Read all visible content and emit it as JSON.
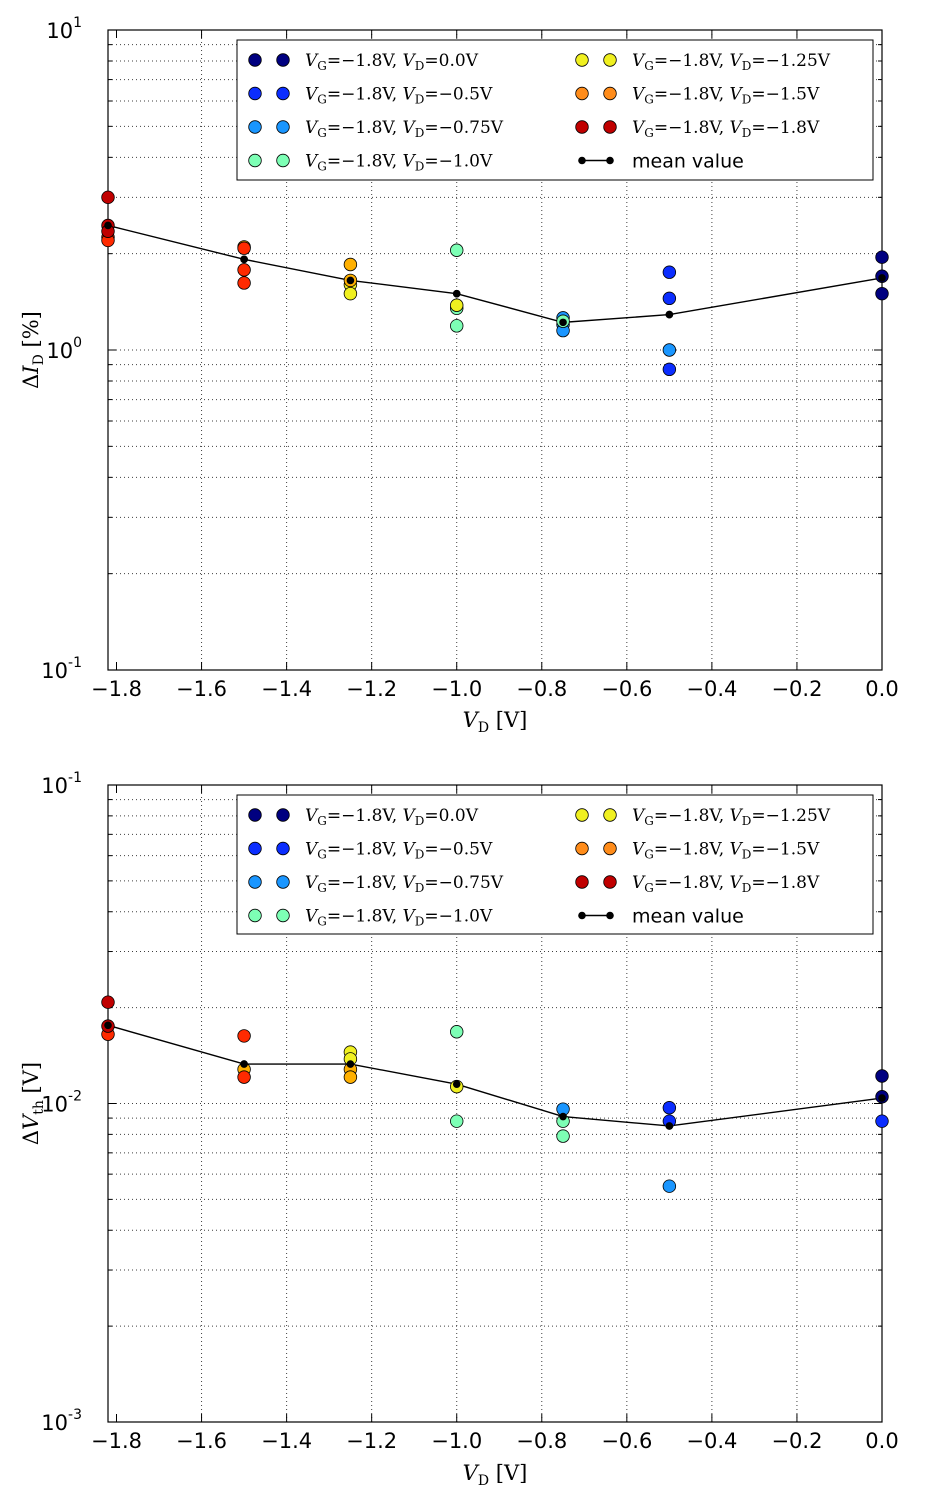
{
  "chart_data": [
    {
      "type": "scatter",
      "title": "",
      "xlabel": "V_D [V]",
      "ylabel": "ΔI_D [%]",
      "xlim": [
        -1.82,
        0.0
      ],
      "ylim": [
        0.1,
        10
      ],
      "yscale": "log",
      "grid": true,
      "legend_position": "top-right",
      "x_ticks": [
        "−1.8",
        "−1.6",
        "−1.4",
        "−1.2",
        "−1.0",
        "−0.8",
        "−0.6",
        "−0.4",
        "−0.2",
        "0.0"
      ],
      "y_ticks": [
        {
          "base": "10",
          "exp": "-1"
        },
        {
          "base": "10",
          "exp": "0"
        },
        {
          "base": "10",
          "exp": "1"
        }
      ],
      "series": [
        {
          "name": "V_G=−1.8V, V_D=0.0V",
          "color": "#000080",
          "x": [
            0,
            0,
            0
          ],
          "y": [
            1.95,
            1.7,
            1.5
          ]
        },
        {
          "name": "V_G=−1.8V, V_D=−0.5V",
          "color": "#0b2dff",
          "x": [
            -0.5,
            -0.5,
            -0.5
          ],
          "y": [
            1.75,
            1.45,
            0.87
          ]
        },
        {
          "name": "V_G=−1.8V, V_D=−0.75V",
          "color": "#1a96ff",
          "x": [
            -0.5,
            -0.75,
            -0.75,
            -0.75
          ],
          "y": [
            1.0,
            1.26,
            1.2,
            1.15
          ]
        },
        {
          "name": "V_G=−1.8V, V_D=−1.0V",
          "color": "#7dffb5",
          "x": [
            -1.0,
            -1.0,
            -1.0,
            -0.75
          ],
          "y": [
            2.05,
            1.35,
            1.19,
            1.23
          ]
        },
        {
          "name": "V_G=−1.8V, V_D=−1.25V",
          "color": "#f0f020",
          "x": [
            -1.0,
            -1.25,
            -1.25
          ],
          "y": [
            1.38,
            1.6,
            1.5
          ]
        },
        {
          "name": "V_G=−1.8V, V_D=−1.5V",
          "color": "#ffb000",
          "x": [
            -1.25,
            -1.25,
            -1.5
          ],
          "y": [
            1.85,
            1.65,
            2.1
          ]
        },
        {
          "name": "V_G=−1.8V, V_D=−1.8V",
          "color": "#ff2a00",
          "x": [
            -1.5,
            -1.5,
            -1.5,
            -1.82,
            -1.82
          ],
          "y": [
            2.08,
            1.78,
            1.62,
            2.25,
            2.2
          ]
        },
        {
          "name": "",
          "color": "#c00000",
          "x": [
            -1.82,
            -1.82,
            -1.82
          ],
          "y": [
            3.0,
            2.45,
            2.35
          ]
        }
      ],
      "mean_series": {
        "name": "mean value",
        "x": [
          -1.82,
          -1.5,
          -1.25,
          -1.0,
          -0.75,
          -0.5,
          0.0
        ],
        "y": [
          2.45,
          1.92,
          1.65,
          1.5,
          1.22,
          1.29,
          1.68
        ]
      },
      "xlabel_main": "V",
      "xlabel_sub": "D",
      "xlabel_unit": " [V]",
      "ylabel_main": "I",
      "ylabel_sub": "D",
      "ylabel_unit": " [%]",
      "legend_entries": [
        {
          "vd": "0.0V",
          "color": "#000080"
        },
        {
          "vd": "−0.5V",
          "color": "#0b2dff"
        },
        {
          "vd": "−0.75V",
          "color": "#1a96ff"
        },
        {
          "vd": "−1.0V",
          "color": "#7dffb5"
        },
        {
          "vd": "−1.25V",
          "color": "#f0f020"
        },
        {
          "vd": "−1.5V",
          "color": "#ff8c1a"
        },
        {
          "vd": "−1.8V",
          "color": "#c00000"
        }
      ]
    },
    {
      "type": "scatter",
      "title": "",
      "xlabel": "V_D [V]",
      "ylabel": "ΔV_th [V]",
      "xlim": [
        -1.82,
        0.0
      ],
      "ylim": [
        0.001,
        0.1
      ],
      "yscale": "log",
      "grid": true,
      "legend_position": "top-right",
      "x_ticks": [
        "−1.8",
        "−1.6",
        "−1.4",
        "−1.2",
        "−1.0",
        "−0.8",
        "−0.6",
        "−0.4",
        "−0.2",
        "0.0"
      ],
      "y_ticks": [
        {
          "base": "10",
          "exp": "-3"
        },
        {
          "base": "10",
          "exp": "-2"
        },
        {
          "base": "10",
          "exp": "-1"
        }
      ],
      "series": [
        {
          "name": "V_G=−1.8V, V_D=0.0V",
          "color": "#000080",
          "x": [
            0,
            0
          ],
          "y": [
            0.0122,
            0.0105
          ]
        },
        {
          "name": "V_G=−1.8V, V_D=−0.5V",
          "color": "#0b2dff",
          "x": [
            0,
            -0.5,
            -0.5
          ],
          "y": [
            0.0088,
            0.0097,
            0.0088
          ]
        },
        {
          "name": "V_G=−1.8V, V_D=−0.75V",
          "color": "#1a96ff",
          "x": [
            -0.5,
            -0.75
          ],
          "y": [
            0.0055,
            0.0096
          ]
        },
        {
          "name": "V_G=−1.8V, V_D=−1.0V",
          "color": "#7dffb5",
          "x": [
            -1.0,
            -1.0,
            -0.75,
            -0.75
          ],
          "y": [
            0.0168,
            0.0088,
            0.0088,
            0.0079
          ]
        },
        {
          "name": "V_G=−1.8V, V_D=−1.25V",
          "color": "#f0f020",
          "x": [
            -1.0,
            -1.25,
            -1.25
          ],
          "y": [
            0.0113,
            0.0145,
            0.0138
          ]
        },
        {
          "name": "V_G=−1.8V, V_D=−1.5V",
          "color": "#ffb000",
          "x": [
            -1.25,
            -1.25,
            -1.5
          ],
          "y": [
            0.0128,
            0.0121,
            0.0128
          ]
        },
        {
          "name": "V_G=−1.8V, V_D=−1.8V",
          "color": "#ff2a00",
          "x": [
            -1.5,
            -1.5,
            -1.82
          ],
          "y": [
            0.0163,
            0.0121,
            0.0165
          ]
        },
        {
          "name": "",
          "color": "#c00000",
          "x": [
            -1.82,
            -1.82
          ],
          "y": [
            0.0208,
            0.0175
          ]
        }
      ],
      "mean_series": {
        "name": "mean value",
        "x": [
          -1.82,
          -1.5,
          -1.25,
          -1.0,
          -0.75,
          -0.5,
          0.0
        ],
        "y": [
          0.0176,
          0.0133,
          0.0133,
          0.0115,
          0.0091,
          0.0085,
          0.0104
        ]
      },
      "xlabel_main": "V",
      "xlabel_sub": "D",
      "xlabel_unit": " [V]",
      "ylabel_main": "V",
      "ylabel_sub": "th",
      "ylabel_unit": " [V]",
      "legend_entries": [
        {
          "vd": "0.0V",
          "color": "#000080"
        },
        {
          "vd": "−0.5V",
          "color": "#0b2dff"
        },
        {
          "vd": "−0.75V",
          "color": "#1a96ff"
        },
        {
          "vd": "−1.0V",
          "color": "#7dffb5"
        },
        {
          "vd": "−1.25V",
          "color": "#f0f020"
        },
        {
          "vd": "−1.5V",
          "color": "#ff8c1a"
        },
        {
          "vd": "−1.8V",
          "color": "#c00000"
        }
      ]
    }
  ]
}
